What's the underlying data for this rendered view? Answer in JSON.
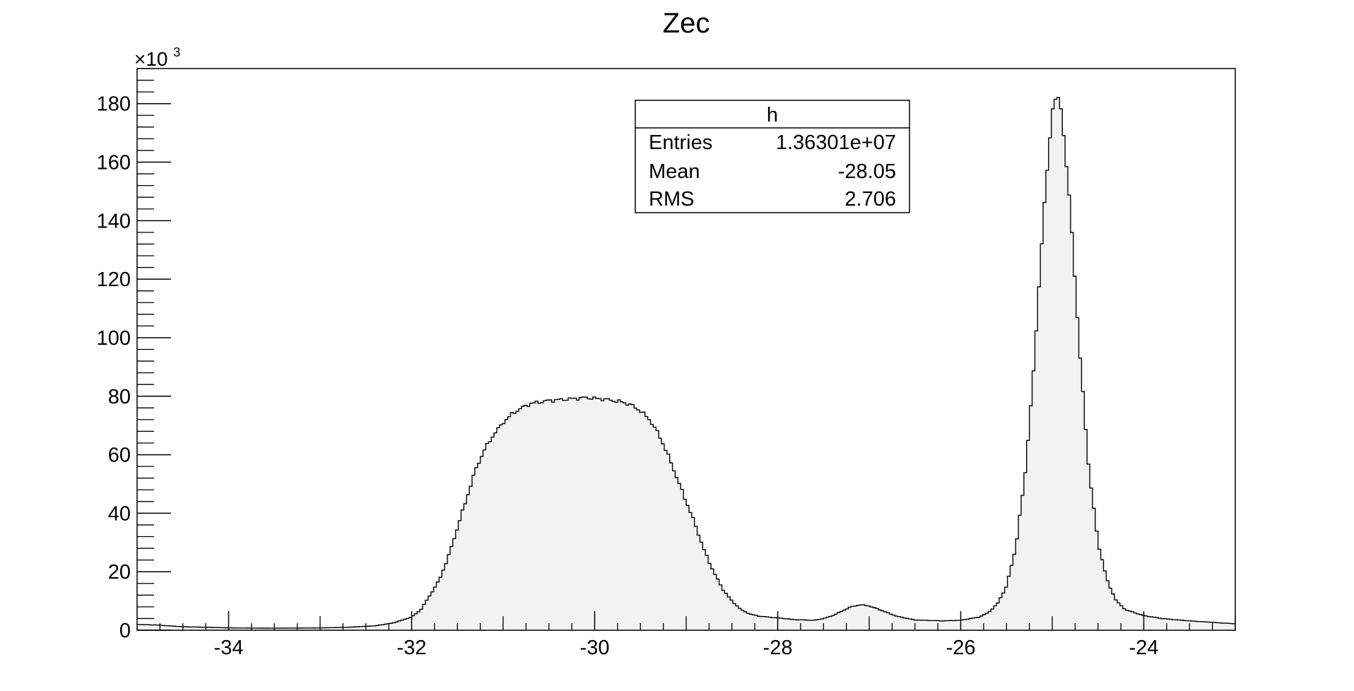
{
  "chart_data": {
    "type": "bar",
    "title": "Zec",
    "xlabel": "",
    "ylabel": "",
    "xlim": [
      -35,
      -23
    ],
    "ylim": [
      0,
      192
    ],
    "y_multiplier_label": "×10",
    "y_multiplier_exp": "3",
    "xticks": [
      -34,
      -32,
      -30,
      -28,
      -26,
      -24
    ],
    "yticks": [
      0,
      20,
      40,
      60,
      80,
      100,
      120,
      140,
      160,
      180
    ],
    "grid": false,
    "bin_width": 0.03,
    "fill_color": "#f2f2f2",
    "line_color": "#000000",
    "profile_points": [
      [
        -35.0,
        2.0
      ],
      [
        -34.8,
        1.8
      ],
      [
        -34.5,
        1.2
      ],
      [
        -34.2,
        1.0
      ],
      [
        -34.0,
        0.8
      ],
      [
        -33.5,
        0.7
      ],
      [
        -33.0,
        0.8
      ],
      [
        -32.7,
        1.0
      ],
      [
        -32.4,
        1.5
      ],
      [
        -32.2,
        2.5
      ],
      [
        -32.0,
        4.5
      ],
      [
        -31.9,
        7.0
      ],
      [
        -31.8,
        12.0
      ],
      [
        -31.7,
        17.0
      ],
      [
        -31.6,
        25.0
      ],
      [
        -31.5,
        35.0
      ],
      [
        -31.4,
        45.0
      ],
      [
        -31.3,
        55.0
      ],
      [
        -31.2,
        62.0
      ],
      [
        -31.1,
        67.0
      ],
      [
        -31.0,
        71.0
      ],
      [
        -30.9,
        74.0
      ],
      [
        -30.8,
        76.0
      ],
      [
        -30.7,
        77.5
      ],
      [
        -30.5,
        78.5
      ],
      [
        -30.3,
        79.0
      ],
      [
        -30.1,
        79.5
      ],
      [
        -29.9,
        79.0
      ],
      [
        -29.7,
        78.0
      ],
      [
        -29.6,
        77.0
      ],
      [
        -29.5,
        75.0
      ],
      [
        -29.4,
        72.0
      ],
      [
        -29.3,
        67.0
      ],
      [
        -29.2,
        60.0
      ],
      [
        -29.1,
        52.0
      ],
      [
        -29.0,
        44.0
      ],
      [
        -28.9,
        36.0
      ],
      [
        -28.8,
        27.0
      ],
      [
        -28.7,
        20.0
      ],
      [
        -28.6,
        14.0
      ],
      [
        -28.5,
        10.0
      ],
      [
        -28.4,
        7.0
      ],
      [
        -28.3,
        5.5
      ],
      [
        -28.2,
        4.8
      ],
      [
        -28.0,
        4.2
      ],
      [
        -27.8,
        3.6
      ],
      [
        -27.6,
        3.4
      ],
      [
        -27.5,
        4.0
      ],
      [
        -27.4,
        5.0
      ],
      [
        -27.3,
        6.5
      ],
      [
        -27.2,
        8.0
      ],
      [
        -27.1,
        8.7
      ],
      [
        -27.0,
        8.3
      ],
      [
        -26.9,
        7.2
      ],
      [
        -26.8,
        6.0
      ],
      [
        -26.7,
        4.8
      ],
      [
        -26.5,
        3.5
      ],
      [
        -26.2,
        3.2
      ],
      [
        -26.0,
        3.4
      ],
      [
        -25.8,
        4.5
      ],
      [
        -25.7,
        6.0
      ],
      [
        -25.6,
        9.0
      ],
      [
        -25.5,
        15.0
      ],
      [
        -25.4,
        28.0
      ],
      [
        -25.3,
        52.0
      ],
      [
        -25.2,
        90.0
      ],
      [
        -25.1,
        140.0
      ],
      [
        -25.0,
        178.0
      ],
      [
        -24.95,
        183.0
      ],
      [
        -24.9,
        178.0
      ],
      [
        -24.8,
        143.0
      ],
      [
        -24.7,
        95.0
      ],
      [
        -24.6,
        55.0
      ],
      [
        -24.5,
        30.0
      ],
      [
        -24.4,
        17.0
      ],
      [
        -24.3,
        10.0
      ],
      [
        -24.2,
        7.0
      ],
      [
        -24.0,
        5.0
      ],
      [
        -23.8,
        4.0
      ],
      [
        -23.5,
        3.2
      ],
      [
        -23.0,
        2.2
      ]
    ],
    "stats_box": {
      "title": "h",
      "rows": [
        {
          "label": "Entries",
          "value": "1.36301e+07"
        },
        {
          "label": "Mean",
          "value": "-28.05"
        },
        {
          "label": "RMS",
          "value": "2.706"
        }
      ]
    }
  }
}
